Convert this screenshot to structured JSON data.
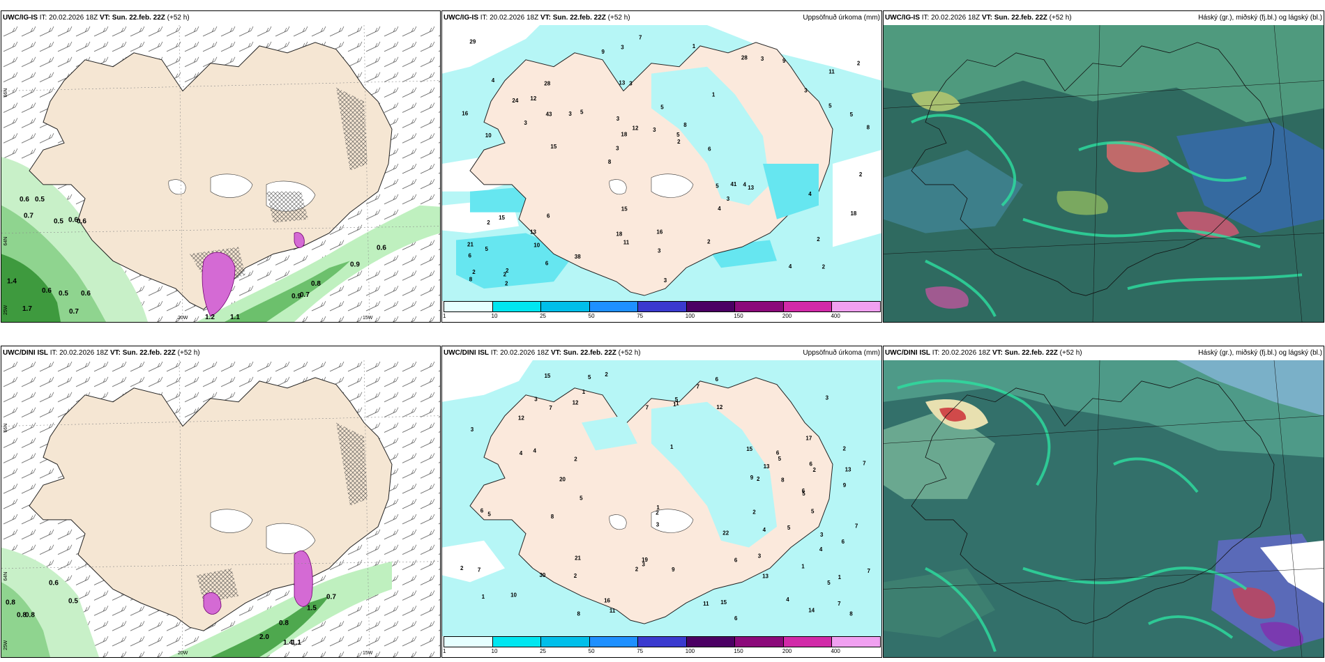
{
  "rows": [
    {
      "model_label": "UWC/IG-IS",
      "it_label": "IT:",
      "it_value": "20.02.2026 18Z",
      "vt_label": "VT:",
      "vt_value": "Sun. 22.feb. 22Z",
      "lead": "(+52 h)",
      "wind_labels": [
        {
          "text": "0.6"
        },
        {
          "text": "0.5"
        },
        {
          "text": "0.7"
        },
        {
          "text": "0.5"
        },
        {
          "text": "0.6"
        },
        {
          "text": "0.6"
        },
        {
          "text": "1.4"
        },
        {
          "text": "0.6"
        },
        {
          "text": "0.5"
        },
        {
          "text": "0.6"
        },
        {
          "text": "0.7"
        },
        {
          "text": "1.7"
        },
        {
          "text": "1.2"
        },
        {
          "text": "1.1"
        },
        {
          "text": "0.9"
        },
        {
          "text": "0.8"
        },
        {
          "text": "0.7"
        },
        {
          "text": "0.9"
        },
        {
          "text": "0.6"
        }
      ],
      "precip_labels": [
        "2",
        "10",
        "11",
        "8",
        "1",
        "2",
        "13",
        "5",
        "15",
        "5",
        "6",
        "10",
        "3",
        "8",
        "13",
        "4",
        "3",
        "8",
        "5",
        "5",
        "3",
        "18",
        "18",
        "28",
        "28",
        "6",
        "4",
        "2",
        "4",
        "3",
        "3",
        "3",
        "4",
        "6",
        "5",
        "5",
        "2",
        "11",
        "2",
        "2",
        "3",
        "2",
        "3",
        "2",
        "13",
        "2",
        "8",
        "16",
        "9",
        "7",
        "15",
        "16",
        "12",
        "3",
        "2",
        "1",
        "9",
        "12",
        "18",
        "15",
        "38",
        "41",
        "43",
        "21",
        "29",
        "24",
        "2",
        "3",
        "3",
        "3",
        "5",
        "6",
        "4"
      ],
      "axis_labels": {
        "lat_left": "66N",
        "lat_left2": "64N",
        "lon_left": "25W",
        "lon_a": "20W",
        "lon_b": "15W",
        "lat_right_top": "66N",
        "lat_right_mid": "64N"
      }
    },
    {
      "model_label": "UWC/DINI ISL",
      "it_label": "IT:",
      "it_value": "20.02.2026 18Z",
      "vt_label": "VT:",
      "vt_value": "Sun. 22.feb. 22Z",
      "lead": "(+52 h)",
      "wind_labels": [
        {
          "text": "0.6"
        },
        {
          "text": "0.5"
        },
        {
          "text": "0.8"
        },
        {
          "text": "0.8"
        },
        {
          "text": "0.8"
        },
        {
          "text": "0.7"
        },
        {
          "text": "1.5"
        },
        {
          "text": "0.8"
        },
        {
          "text": "2.0"
        },
        {
          "text": "1.4"
        },
        {
          "text": "1.1"
        }
      ],
      "precip_labels": [
        "1",
        "2",
        "1",
        "1",
        "1",
        "1",
        "6",
        "2",
        "3",
        "4",
        "13",
        "3",
        "6",
        "11",
        "7",
        "12",
        "5",
        "12",
        "3",
        "2",
        "6",
        "5",
        "11",
        "9",
        "16",
        "2",
        "7",
        "12",
        "15",
        "7",
        "8",
        "13",
        "8",
        "2",
        "3",
        "4",
        "2",
        "7",
        "14",
        "5",
        "5",
        "8",
        "1",
        "20",
        "6",
        "4",
        "10",
        "6",
        "2",
        "5",
        "30",
        "3",
        "1",
        "7",
        "6",
        "2",
        "5",
        "3",
        "6",
        "5",
        "2",
        "3",
        "8",
        "9",
        "7",
        "7",
        "2",
        "1",
        "6",
        "4",
        "17",
        "5",
        "21",
        "22",
        "19",
        "13",
        "15",
        "9",
        "5",
        "4",
        "15",
        "7"
      ],
      "axis_labels": {
        "lat_left": "66N",
        "lat_left2": "64N",
        "lon_left": "25W",
        "lon_a": "20W",
        "lon_b": "15W",
        "lat_right_top": "66N",
        "lat_right_mid": "64N"
      }
    }
  ],
  "precip_title": "Uppsöfnuð úrkoma (mm)",
  "cloud_title": "Háský (gr.), miðský (fj.bl.) og lágský (bl.)",
  "colorbar": {
    "ticks": [
      "1",
      "10",
      "25",
      "50",
      "75",
      "100",
      "150",
      "200",
      "400"
    ],
    "colors": [
      "#e6ffff",
      "#00e6f0",
      "#00bfea",
      "#1e90ff",
      "#3a3acf",
      "#4b0063",
      "#8b0a7a",
      "#d12aa8",
      "#f0a0f0"
    ]
  }
}
